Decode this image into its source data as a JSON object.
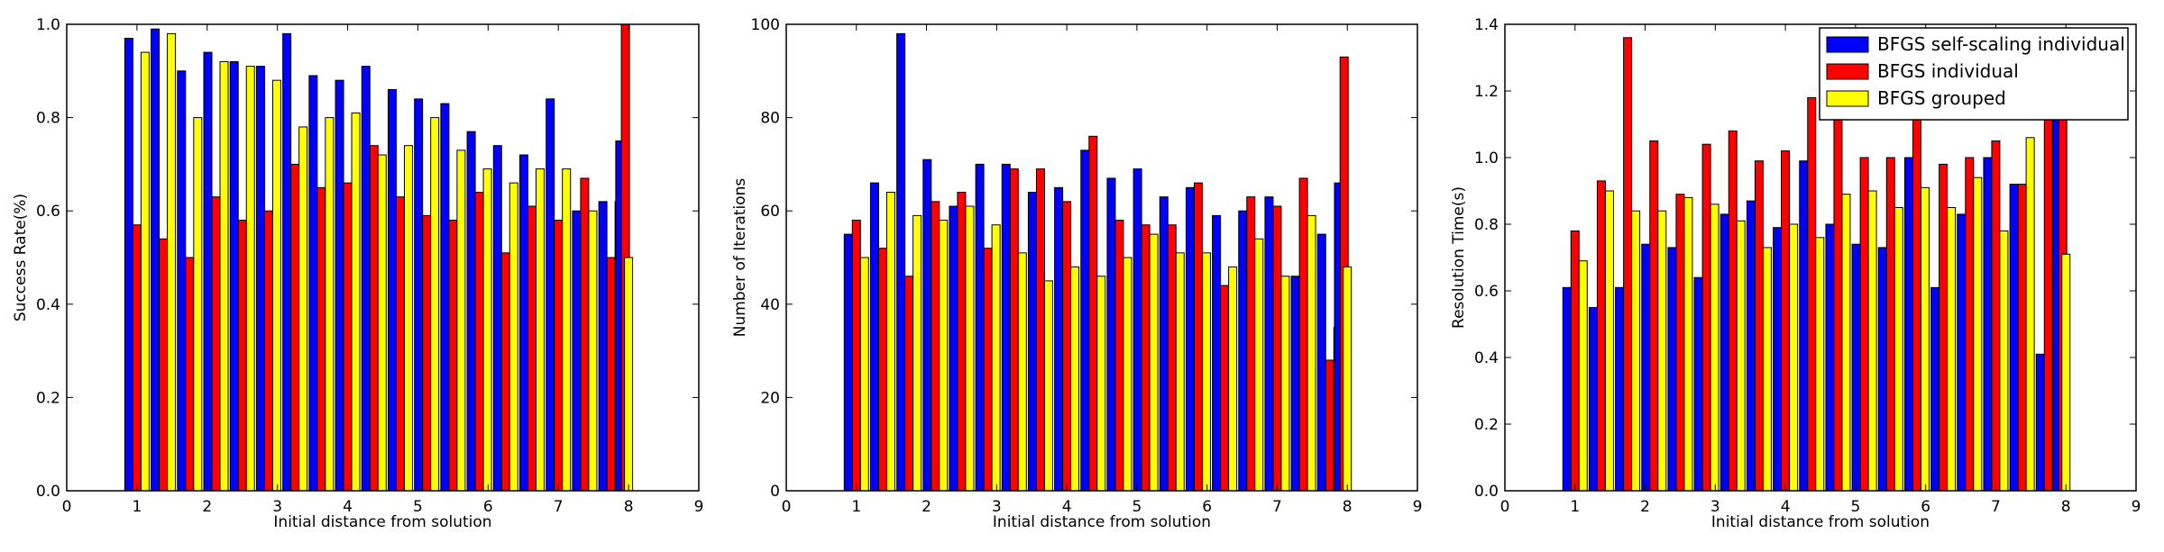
{
  "figure": {
    "legend_title": "",
    "legend": [
      {
        "label": "BFGS self-scaling individual",
        "color": "#0000ff"
      },
      {
        "label": "BFGS individual",
        "color": "#ff0000"
      },
      {
        "label": "BFGS grouped",
        "color": "#ffff00"
      }
    ]
  },
  "chart_data": [
    {
      "type": "bar",
      "title": "",
      "xlabel": "Initial distance from solution",
      "ylabel": "Success Rate(%)",
      "xlim": [
        0,
        9
      ],
      "ylim": [
        0,
        1.0
      ],
      "xticks": [
        "0",
        "1",
        "2",
        "3",
        "4",
        "5",
        "6",
        "7",
        "8",
        "9"
      ],
      "yticks": [
        "0.0",
        "0.2",
        "0.4",
        "0.6",
        "0.8",
        "1.0"
      ],
      "grid": false,
      "legend": "none",
      "x": [
        1.0,
        1.375,
        1.75,
        2.125,
        2.5,
        2.875,
        3.25,
        3.625,
        4.0,
        4.375,
        4.75,
        5.125,
        5.5,
        5.875,
        6.25,
        6.625,
        7.0,
        7.375,
        7.75
      ],
      "series": [
        {
          "name": "BFGS self-scaling individual",
          "color": "#0000ff",
          "values": [
            0.97,
            0.99,
            0.9,
            0.94,
            0.92,
            0.91,
            0.98,
            0.89,
            0.88,
            0.91,
            0.86,
            0.84,
            0.83,
            0.77,
            0.74,
            0.72,
            0.84,
            0.6,
            0.62
          ]
        },
        {
          "name": "BFGS individual",
          "color": "#ff0000",
          "values": [
            0.57,
            0.54,
            0.5,
            0.63,
            0.58,
            0.6,
            0.7,
            0.65,
            0.66,
            0.74,
            0.63,
            0.59,
            0.58,
            0.64,
            0.51,
            0.61,
            0.58,
            0.67,
            0.5
          ]
        },
        {
          "name": "BFGS grouped",
          "color": "#ffff00",
          "values": [
            0.94,
            0.98,
            0.8,
            0.92,
            0.91,
            0.88,
            0.78,
            0.8,
            0.81,
            0.72,
            0.74,
            0.8,
            0.73,
            0.69,
            0.66,
            0.69,
            0.69,
            0.6,
            0.62
          ]
        }
      ],
      "extra_bars": [
        {
          "x": 7.875,
          "series": 0,
          "value": 0.75
        },
        {
          "x": 7.955,
          "series": 1,
          "value": 1.0
        },
        {
          "x": 8.0,
          "series": 2,
          "value": 0.5
        }
      ]
    },
    {
      "type": "bar",
      "title": "",
      "xlabel": "Initial distance from solution",
      "ylabel": "Number of Iterations",
      "xlim": [
        0,
        9
      ],
      "ylim": [
        0,
        100
      ],
      "xticks": [
        "0",
        "1",
        "2",
        "3",
        "4",
        "5",
        "6",
        "7",
        "8",
        "9"
      ],
      "yticks": [
        "0",
        "20",
        "40",
        "60",
        "80",
        "100"
      ],
      "grid": false,
      "legend": "none",
      "x": [
        1.0,
        1.375,
        1.75,
        2.125,
        2.5,
        2.875,
        3.25,
        3.625,
        4.0,
        4.375,
        4.75,
        5.125,
        5.5,
        5.875,
        6.25,
        6.625,
        7.0,
        7.375,
        7.75
      ],
      "series": [
        {
          "name": "BFGS self-scaling individual",
          "color": "#0000ff",
          "values": [
            55,
            66,
            98,
            71,
            61,
            70,
            70,
            64,
            65,
            73,
            67,
            69,
            63,
            65,
            59,
            60,
            63,
            46,
            55
          ]
        },
        {
          "name": "BFGS individual",
          "color": "#ff0000",
          "values": [
            58,
            52,
            46,
            62,
            64,
            52,
            69,
            69,
            62,
            76,
            58,
            57,
            57,
            66,
            44,
            63,
            61,
            67,
            28
          ]
        },
        {
          "name": "BFGS grouped",
          "color": "#ffff00",
          "values": [
            50,
            64,
            59,
            58,
            61,
            57,
            51,
            45,
            48,
            46,
            50,
            55,
            51,
            51,
            48,
            54,
            46,
            59,
            35
          ]
        }
      ],
      "extra_bars": [
        {
          "x": 7.875,
          "series": 0,
          "value": 66
        },
        {
          "x": 7.955,
          "series": 1,
          "value": 93
        },
        {
          "x": 8.0,
          "series": 2,
          "value": 48
        }
      ]
    },
    {
      "type": "bar",
      "title": "",
      "xlabel": "Initial distance from solution",
      "ylabel": "Resolution Time(s)",
      "xlim": [
        0,
        9
      ],
      "ylim": [
        0,
        1.4
      ],
      "xticks": [
        "0",
        "1",
        "2",
        "3",
        "4",
        "5",
        "6",
        "7",
        "8",
        "9"
      ],
      "yticks": [
        "0.0",
        "0.2",
        "0.4",
        "0.6",
        "0.8",
        "1.0",
        "1.2",
        "1.4"
      ],
      "grid": false,
      "legend": "top-right",
      "x": [
        1.0,
        1.375,
        1.75,
        2.125,
        2.5,
        2.875,
        3.25,
        3.625,
        4.0,
        4.375,
        4.75,
        5.125,
        5.5,
        5.875,
        6.25,
        6.625,
        7.0,
        7.375,
        7.75
      ],
      "series": [
        {
          "name": "BFGS self-scaling individual",
          "color": "#0000ff",
          "values": [
            0.61,
            0.55,
            0.61,
            0.74,
            0.73,
            0.64,
            0.83,
            0.87,
            0.79,
            0.99,
            0.8,
            0.74,
            0.73,
            1.0,
            0.61,
            0.83,
            1.0,
            0.92,
            0.41
          ]
        },
        {
          "name": "BFGS individual",
          "color": "#ff0000",
          "values": [
            0.78,
            0.93,
            1.36,
            1.05,
            0.89,
            1.04,
            1.08,
            0.99,
            1.02,
            1.18,
            1.2,
            1.0,
            1.0,
            1.2,
            0.98,
            1.0,
            1.05,
            0.92,
            1.2
          ]
        },
        {
          "name": "BFGS grouped",
          "color": "#ffff00",
          "values": [
            0.69,
            0.9,
            0.84,
            0.84,
            0.88,
            0.86,
            0.81,
            0.73,
            0.8,
            0.76,
            0.89,
            0.9,
            0.85,
            0.91,
            0.85,
            0.94,
            0.78,
            1.06,
            0.62
          ]
        }
      ],
      "extra_bars": [
        {
          "x": 7.875,
          "series": 0,
          "value": 1.38
        },
        {
          "x": 7.955,
          "series": 1,
          "value": 1.2
        },
        {
          "x": 8.0,
          "series": 2,
          "value": 0.71
        }
      ]
    }
  ]
}
